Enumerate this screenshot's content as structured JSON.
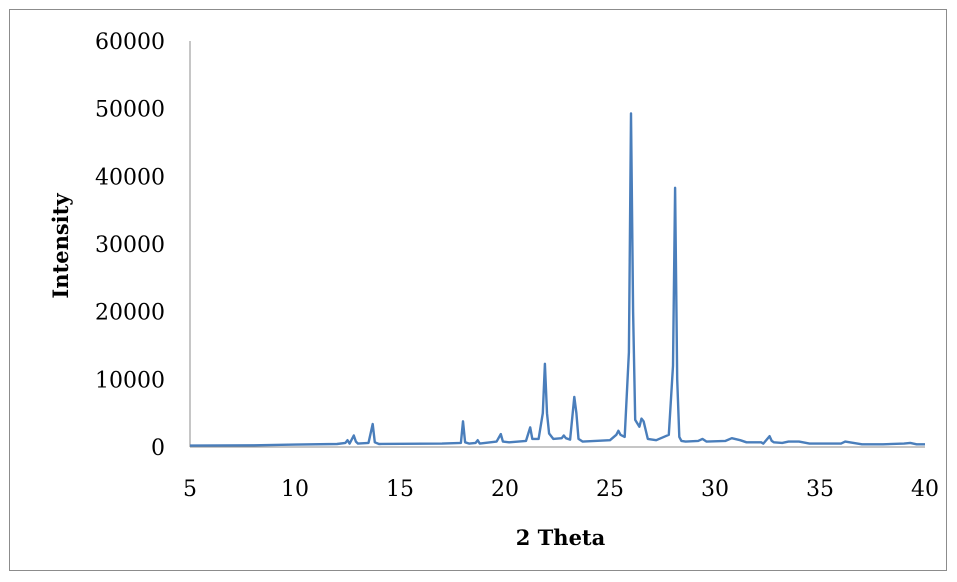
{
  "chart_data": {
    "type": "line",
    "title": "",
    "xlabel": "2 Theta",
    "ylabel": "Intensity",
    "xlim": [
      5,
      40
    ],
    "ylim": [
      0,
      60000
    ],
    "x_ticks": [
      5,
      10,
      15,
      20,
      25,
      30,
      35,
      40
    ],
    "y_ticks": [
      0,
      10000,
      20000,
      30000,
      40000,
      50000,
      60000
    ],
    "grid": false,
    "legend": "none",
    "series_color": "#4a7ebb",
    "series": [
      {
        "x": [
          5,
          8,
          10,
          12,
          12.4,
          12.5,
          12.6,
          12.8,
          12.9,
          13.0,
          13.5,
          13.7,
          13.8,
          14.0,
          17,
          17.9,
          18.0,
          18.1,
          18.3,
          18.6,
          18.7,
          18.8,
          19.6,
          19.8,
          19.9,
          20.2,
          21.0,
          21.2,
          21.3,
          21.6,
          21.8,
          21.9,
          22.0,
          22.1,
          22.3,
          22.7,
          22.8,
          22.9,
          23.1,
          23.3,
          23.4,
          23.5,
          23.7,
          25.0,
          25.3,
          25.4,
          25.5,
          25.7,
          25.9,
          26.0,
          26.1,
          26.2,
          26.4,
          26.5,
          26.6,
          26.7,
          26.8,
          27.2,
          27.8,
          28.0,
          28.1,
          28.2,
          28.3,
          28.4,
          28.6,
          29.2,
          29.4,
          29.6,
          30.5,
          30.8,
          31.2,
          31.5,
          32.2,
          32.3,
          32.6,
          32.7,
          32.8,
          33.2,
          33.5,
          34.0,
          34.5,
          35.5,
          36.0,
          36.2,
          37,
          38,
          39,
          39.3,
          39.6,
          40
        ],
        "y": [
          200,
          250,
          350,
          450,
          600,
          1000,
          500,
          1700,
          800,
          500,
          600,
          3400,
          700,
          450,
          500,
          600,
          3800,
          700,
          500,
          600,
          1000,
          500,
          800,
          1900,
          800,
          700,
          900,
          2900,
          1200,
          1200,
          5000,
          12300,
          5000,
          2000,
          1200,
          1300,
          1700,
          1300,
          1100,
          7400,
          5000,
          1200,
          800,
          1000,
          1800,
          2400,
          1800,
          1500,
          14000,
          49300,
          20000,
          4000,
          3000,
          4200,
          3800,
          2500,
          1200,
          1000,
          1800,
          12000,
          38300,
          10000,
          1500,
          900,
          800,
          900,
          1200,
          800,
          900,
          1300,
          1000,
          700,
          700,
          500,
          1600,
          900,
          700,
          600,
          800,
          800,
          500,
          500,
          500,
          800,
          400,
          400,
          500,
          600,
          400,
          400
        ]
      }
    ]
  }
}
